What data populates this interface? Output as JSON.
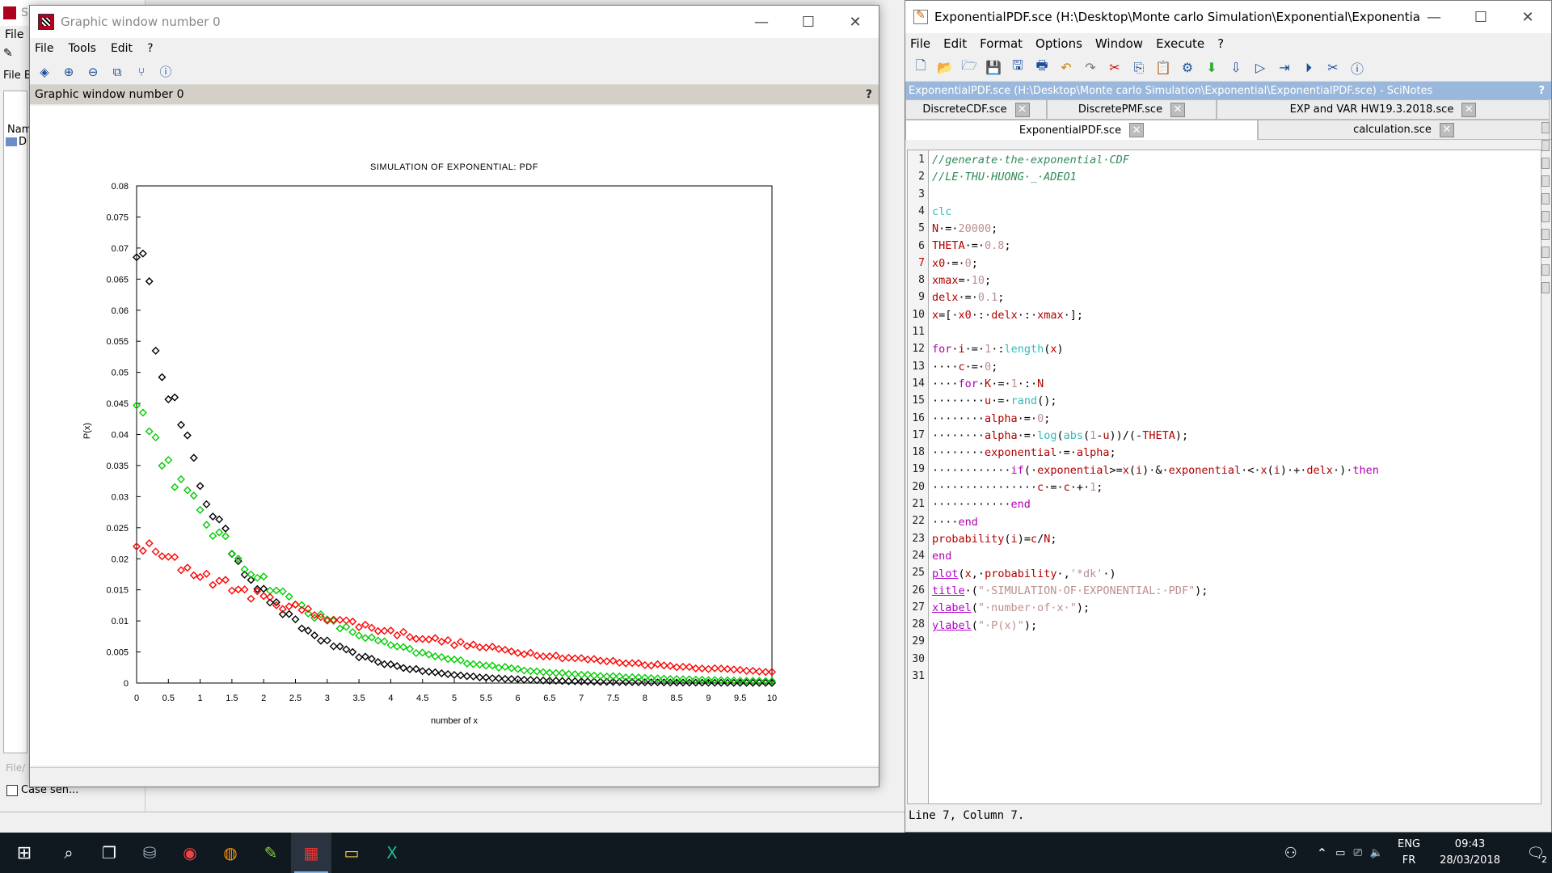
{
  "console": {
    "title_fragment": "S",
    "menu_file": "File",
    "strip_label": "File B",
    "column_label": "Nam",
    "file_fragment": "D",
    "file_field_hint": "File/",
    "case_label": "Case sen..."
  },
  "graphic_window": {
    "title": "Graphic window number 0",
    "menu": [
      "File",
      "Tools",
      "Edit",
      "?"
    ],
    "toolbar_icons": [
      "datatip-icon",
      "zoom-in-icon",
      "zoom-out-icon",
      "rotate-icon",
      "axes-icon",
      "help-icon"
    ],
    "info_text": "Graphic window number 0",
    "help_mark": "?"
  },
  "chart_data": {
    "type": "scatter",
    "title": "SIMULATION OF EXPONENTIAL: PDF",
    "xlabel": "number of x",
    "ylabel": "P(x)",
    "xlim": [
      0,
      10
    ],
    "ylim": [
      0,
      0.08
    ],
    "x_ticks": [
      "0",
      "0.5",
      "1",
      "1.5",
      "2",
      "2.5",
      "3",
      "3.5",
      "4",
      "4.5",
      "5",
      "5.5",
      "6",
      "6.5",
      "7",
      "7.5",
      "8",
      "8.5",
      "9",
      "9.5",
      "10"
    ],
    "y_ticks": [
      "0",
      "0.005",
      "0.01",
      "0.015",
      "0.02",
      "0.025",
      "0.03",
      "0.035",
      "0.04",
      "0.045",
      "0.05",
      "0.055",
      "0.06",
      "0.065",
      "0.07",
      "0.075",
      "0.08"
    ],
    "marker": "diamond",
    "series": [
      {
        "color": "#000000",
        "rate": 0.8,
        "amplitude": 0.08
      },
      {
        "color": "#00cc00",
        "rate": 0.5,
        "amplitude": 0.05
      },
      {
        "color": "#ff0000",
        "rate": 0.25,
        "amplitude": 0.025
      }
    ]
  },
  "scinotes": {
    "title": "ExponentialPDF.sce (H:\\Desktop\\Monte carlo Simulation\\Exponential\\ExponentialPDF...",
    "menu": [
      "File",
      "Edit",
      "Format",
      "Options",
      "Window",
      "Execute",
      "?"
    ],
    "path_text": "ExponentialPDF.sce (H:\\Desktop\\Monte carlo Simulation\\Exponential\\ExponentialPDF.sce) - SciNotes",
    "path_help": "?",
    "tabs_row1": [
      "DiscreteCDF.sce",
      "DiscretePMF.sce",
      "EXP and VAR HW19.3.2018.sce"
    ],
    "tabs_row2": [
      "ExponentialPDF.sce",
      "calculation.sce"
    ],
    "tab_close": "✕",
    "line_numbers": [
      "1",
      "2",
      "3",
      "4",
      "5",
      "6",
      "7",
      "8",
      "9",
      "10",
      "11",
      "12",
      "13",
      "14",
      "15",
      "16",
      "17",
      "18",
      "19",
      "20",
      "21",
      "22",
      "23",
      "24",
      "25",
      "26",
      "27",
      "28",
      "29",
      "30",
      "31"
    ],
    "status": "Line 7, Column 7."
  },
  "taskbar": {
    "lang_top": "ENG",
    "lang_bottom": "FR",
    "time": "09:43",
    "date": "28/03/2018",
    "notif_count": "2"
  }
}
